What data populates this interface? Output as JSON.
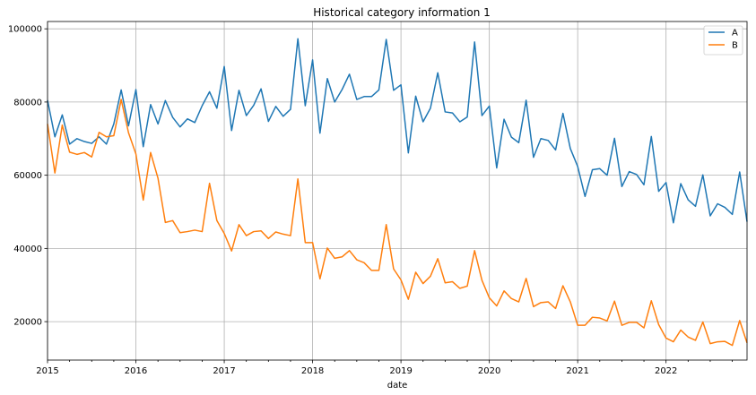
{
  "chart_data": {
    "type": "line",
    "title": "Historical category information 1",
    "xlabel": "date",
    "ylabel": "",
    "x_start": "2015-01",
    "x_frequency": "monthly",
    "xlim": [
      "2015-01",
      "2022-12"
    ],
    "ylim": [
      9500,
      102000
    ],
    "x_ticks": [
      "2015",
      "2016",
      "2017",
      "2018",
      "2019",
      "2020",
      "2021",
      "2022"
    ],
    "y_ticks": [
      20000,
      40000,
      60000,
      80000,
      100000
    ],
    "grid": true,
    "legend_position": "top-right",
    "series": [
      {
        "name": "A",
        "color": "#1f77b4",
        "values": [
          80500,
          70500,
          76500,
          68500,
          70000,
          69200,
          68700,
          70500,
          68500,
          74000,
          83300,
          73500,
          83400,
          67800,
          79300,
          74000,
          80400,
          75800,
          73200,
          75400,
          74400,
          79000,
          82800,
          78300,
          89700,
          72200,
          83200,
          76300,
          79100,
          83600,
          74700,
          78800,
          76100,
          78000,
          97300,
          79000,
          91500,
          71500,
          86400,
          80000,
          83400,
          87600,
          80700,
          81500,
          81500,
          83300,
          97100,
          83200,
          84700,
          66100,
          81600,
          74600,
          78300,
          88000,
          77300,
          77000,
          74600,
          75900,
          96400,
          76300,
          78900,
          62000,
          75300,
          70400,
          68900,
          80500,
          64900,
          70000,
          69500,
          66900,
          76900,
          67300,
          62400,
          54200,
          61500,
          61800,
          60000,
          70100,
          56900,
          61000,
          60200,
          57400,
          70600,
          55600,
          58000,
          47000,
          57700,
          53300,
          51500,
          60100,
          48900,
          52200,
          51200,
          49300,
          60900,
          47300
        ]
      },
      {
        "name": "B",
        "color": "#ff7f0e",
        "values": [
          74000,
          60600,
          73700,
          66300,
          65700,
          66200,
          65000,
          71700,
          70500,
          70800,
          80700,
          71600,
          65800,
          53200,
          66200,
          59200,
          47100,
          47600,
          44300,
          44600,
          45000,
          44600,
          57800,
          47600,
          44100,
          39300,
          46500,
          43500,
          44600,
          44800,
          42700,
          44500,
          43900,
          43500,
          59000,
          41600,
          41600,
          31700,
          40100,
          37300,
          37700,
          39400,
          36900,
          36100,
          34000,
          34000,
          46500,
          34400,
          31400,
          26100,
          33500,
          30400,
          32400,
          37200,
          30600,
          30900,
          29100,
          29700,
          39400,
          31300,
          26500,
          24300,
          28400,
          26300,
          25400,
          31800,
          24100,
          25200,
          25400,
          23600,
          29800,
          25400,
          19000,
          19000,
          21200,
          21000,
          20200,
          25600,
          19000,
          19800,
          19800,
          18300,
          25700,
          19200,
          15500,
          14500,
          17700,
          15800,
          14900,
          19900,
          14000,
          14500,
          14600,
          13500,
          20300,
          14200
        ]
      }
    ]
  }
}
